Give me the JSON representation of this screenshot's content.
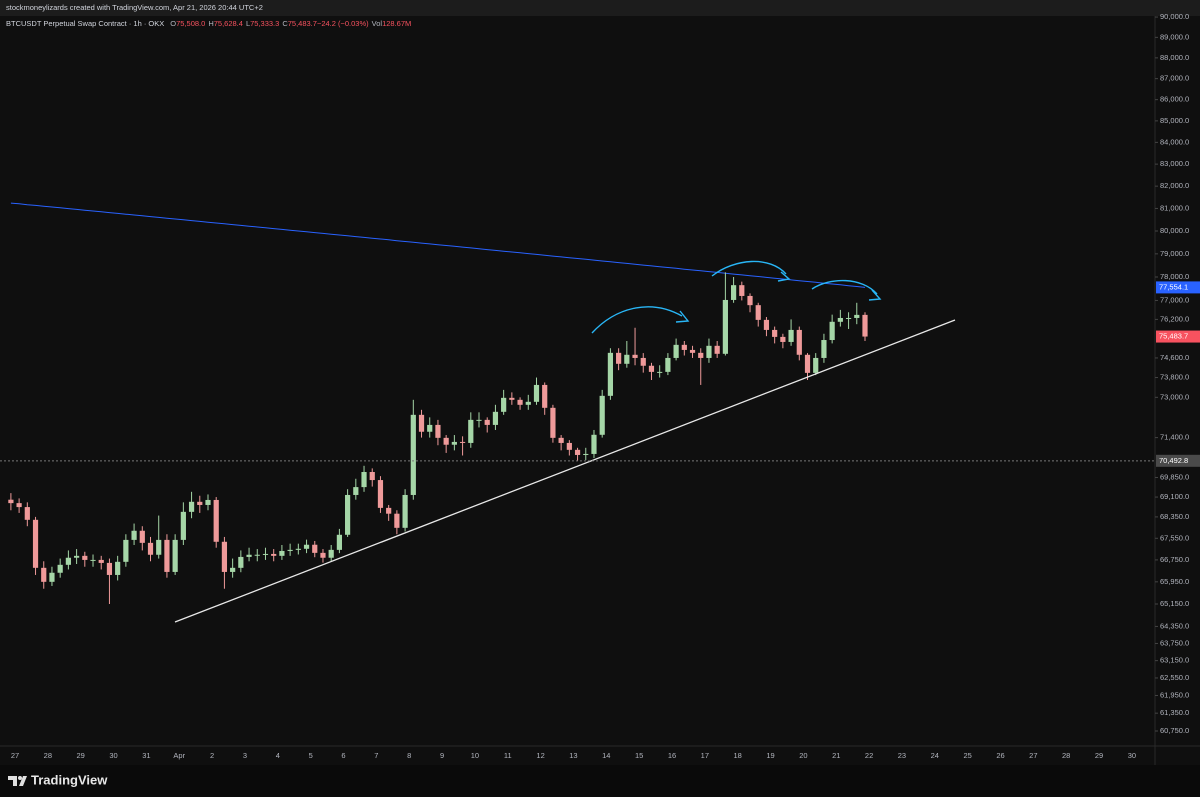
{
  "header": {
    "caption": "stockmoneylizards created with TradingView.com, Apr 21, 2026 20:44 UTC+2"
  },
  "footer": {
    "brand": "TradingView"
  },
  "chart_data": {
    "type": "candlestick",
    "title": "BTCUSDT Perpetual Swap Contract · 1h · OKX",
    "legend": [
      {
        "label": "O",
        "value": "75,508.0"
      },
      {
        "label": "H",
        "value": "75,628.4"
      },
      {
        "label": "L",
        "value": "75,333.3"
      },
      {
        "label": "C",
        "value": "75,483.7"
      },
      {
        "label": "",
        "value": "−24.2 (−0.03%)"
      },
      {
        "label": "Vol",
        "value": "128.67M"
      }
    ],
    "categories": [
      "27",
      "28",
      "29",
      "30",
      "31",
      "Apr",
      "2",
      "3",
      "4",
      "5",
      "6",
      "7",
      "8",
      "9",
      "10",
      "11",
      "12",
      "13",
      "14",
      "15",
      "16",
      "17",
      "18",
      "19",
      "20",
      "21",
      "22",
      "23",
      "24",
      "25",
      "26",
      "27",
      "28",
      "29",
      "30"
    ],
    "log_scale": true,
    "up_color": "#a5d6a7",
    "down_color": "#ef9a9a",
    "ma_color": "#2962ff",
    "ylim": [
      60500,
      90350
    ],
    "yticks": [
      {
        "value": 90000,
        "label": "90,000.0"
      },
      {
        "value": 89000,
        "label": "89,000.0"
      },
      {
        "value": 88000,
        "label": "88,000.0"
      },
      {
        "value": 87000,
        "label": "87,000.0"
      },
      {
        "value": 86000,
        "label": "86,000.0"
      },
      {
        "value": 85000,
        "label": "85,000.0"
      },
      {
        "value": 84000,
        "label": "84,000.0"
      },
      {
        "value": 83000,
        "label": "83,000.0"
      },
      {
        "value": 82000,
        "label": "82,000.0"
      },
      {
        "value": 81000,
        "label": "81,000.0"
      },
      {
        "value": 80000,
        "label": "80,000.0"
      },
      {
        "value": 79000,
        "label": "79,000.0"
      },
      {
        "value": 78000,
        "label": "78,000.0"
      },
      {
        "value": 77000,
        "label": "77,000.0"
      },
      {
        "value": 76200,
        "label": "76,200.0"
      },
      {
        "value": 74600,
        "label": "74,600.0"
      },
      {
        "value": 73800,
        "label": "73,800.0"
      },
      {
        "value": 73000,
        "label": "73,000.0"
      },
      {
        "value": 71400,
        "label": "71,400.0"
      },
      {
        "value": 69850,
        "label": "69,850.0"
      },
      {
        "value": 69100,
        "label": "69,100.0"
      },
      {
        "value": 68350,
        "label": "68,350.0"
      },
      {
        "value": 67550,
        "label": "67,550.0"
      },
      {
        "value": 66750,
        "label": "66,750.0"
      },
      {
        "value": 65950,
        "label": "65,950.0"
      },
      {
        "value": 65150,
        "label": "65,150.0"
      },
      {
        "value": 64350,
        "label": "64,350.0"
      },
      {
        "value": 63750,
        "label": "63,750.0"
      },
      {
        "value": 63150,
        "label": "63,150.0"
      },
      {
        "value": 62550,
        "label": "62,550.0"
      },
      {
        "value": 61950,
        "label": "61,950.0"
      },
      {
        "value": 61350,
        "label": "61,350.0"
      },
      {
        "value": 60750,
        "label": "60,750.0"
      }
    ],
    "price_tags": [
      {
        "value": 77554.1,
        "label": "77,554.1",
        "color": "#2962ff"
      },
      {
        "value": 75483.7,
        "label": "75,483.7",
        "color": "#f7525f"
      },
      {
        "value": 70492.8,
        "label": "70,492.8",
        "color": "#4a4a4a",
        "dashed": true
      }
    ],
    "candles": [
      [
        69000,
        69250,
        68600,
        68870
      ],
      [
        68870,
        69050,
        68500,
        68720
      ],
      [
        68720,
        68900,
        68000,
        68240
      ],
      [
        68240,
        68350,
        66200,
        66460
      ],
      [
        66460,
        66700,
        65700,
        65950
      ],
      [
        65950,
        66500,
        65800,
        66280
      ],
      [
        66280,
        66800,
        66100,
        66570
      ],
      [
        66570,
        67100,
        66400,
        66830
      ],
      [
        66830,
        67150,
        66600,
        66900
      ],
      [
        66900,
        67050,
        66500,
        66750
      ],
      [
        66750,
        66950,
        66500,
        66750
      ],
      [
        66750,
        66900,
        66400,
        66640
      ],
      [
        66640,
        66800,
        65150,
        66200
      ],
      [
        66200,
        66900,
        66000,
        66680
      ],
      [
        66680,
        67700,
        66500,
        67490
      ],
      [
        67490,
        68100,
        67300,
        67830
      ],
      [
        67830,
        68000,
        67100,
        67380
      ],
      [
        67380,
        67600,
        66700,
        66940
      ],
      [
        66940,
        68400,
        66800,
        67490
      ],
      [
        67490,
        67700,
        66100,
        66310
      ],
      [
        66310,
        67700,
        66200,
        67490
      ],
      [
        67490,
        68900,
        67300,
        68540
      ],
      [
        68540,
        69300,
        68300,
        68920
      ],
      [
        68920,
        69150,
        68500,
        68800
      ],
      [
        68800,
        69200,
        68600,
        68990
      ],
      [
        68990,
        69100,
        67200,
        67420
      ],
      [
        67420,
        67600,
        65700,
        66310
      ],
      [
        66310,
        66800,
        66100,
        66460
      ],
      [
        66460,
        67100,
        66300,
        66860
      ],
      [
        66860,
        67200,
        66700,
        66940
      ],
      [
        66940,
        67150,
        66700,
        66940
      ],
      [
        66940,
        67200,
        66750,
        66970
      ],
      [
        66970,
        67150,
        66700,
        66900
      ],
      [
        66900,
        67300,
        66750,
        67080
      ],
      [
        67080,
        67350,
        66900,
        67120
      ],
      [
        67120,
        67350,
        66950,
        67160
      ],
      [
        67160,
        67500,
        67000,
        67310
      ],
      [
        67310,
        67450,
        66850,
        67010
      ],
      [
        67010,
        67150,
        66650,
        66830
      ],
      [
        66830,
        67300,
        66700,
        67120
      ],
      [
        67120,
        67900,
        67000,
        67680
      ],
      [
        67680,
        69400,
        67600,
        69180
      ],
      [
        69180,
        69800,
        69000,
        69480
      ],
      [
        69480,
        70300,
        69300,
        70060
      ],
      [
        70060,
        70200,
        69500,
        69750
      ],
      [
        69750,
        69900,
        68500,
        68690
      ],
      [
        68690,
        68800,
        68200,
        68470
      ],
      [
        68470,
        68600,
        67700,
        67940
      ],
      [
        67940,
        69400,
        67800,
        69180
      ],
      [
        69180,
        72900,
        69000,
        72300
      ],
      [
        72300,
        72500,
        71400,
        71630
      ],
      [
        71630,
        72200,
        71400,
        71900
      ],
      [
        71900,
        72100,
        71100,
        71390
      ],
      [
        71390,
        71500,
        70800,
        71120
      ],
      [
        71120,
        71500,
        70900,
        71230
      ],
      [
        71230,
        71450,
        70700,
        71190
      ],
      [
        71190,
        72400,
        71000,
        72100
      ],
      [
        72100,
        72400,
        71800,
        72100
      ],
      [
        72100,
        72200,
        71600,
        71900
      ],
      [
        71900,
        72700,
        71700,
        72420
      ],
      [
        72420,
        73300,
        72300,
        72980
      ],
      [
        72980,
        73200,
        72700,
        72900
      ],
      [
        72900,
        73000,
        72500,
        72700
      ],
      [
        72700,
        73100,
        72500,
        72820
      ],
      [
        72820,
        73800,
        72700,
        73500
      ],
      [
        73500,
        73600,
        72300,
        72580
      ],
      [
        72580,
        72700,
        71200,
        71390
      ],
      [
        71390,
        71500,
        70900,
        71190
      ],
      [
        71190,
        71300,
        70700,
        70920
      ],
      [
        70920,
        71000,
        70500,
        70720
      ],
      [
        70720,
        71000,
        70520,
        70760
      ],
      [
        70760,
        71700,
        70600,
        71510
      ],
      [
        71510,
        73300,
        71400,
        73060
      ],
      [
        73060,
        75000,
        72900,
        74810
      ],
      [
        74810,
        75000,
        74100,
        74360
      ],
      [
        74360,
        75300,
        74200,
        74730
      ],
      [
        74730,
        75850,
        74300,
        74600
      ],
      [
        74600,
        74800,
        74000,
        74280
      ],
      [
        74280,
        74400,
        73700,
        74030
      ],
      [
        74030,
        74300,
        73800,
        74030
      ],
      [
        74030,
        74800,
        73900,
        74600
      ],
      [
        74600,
        75400,
        74500,
        75140
      ],
      [
        75140,
        75300,
        74700,
        74930
      ],
      [
        74930,
        75100,
        74600,
        74810
      ],
      [
        74810,
        75000,
        73500,
        74600
      ],
      [
        74600,
        75400,
        74400,
        75100
      ],
      [
        75100,
        75300,
        74600,
        74770
      ],
      [
        74770,
        78200,
        74700,
        77020
      ],
      [
        77020,
        78000,
        76900,
        77650
      ],
      [
        77650,
        77800,
        77000,
        77190
      ],
      [
        77190,
        77300,
        76500,
        76800
      ],
      [
        76800,
        76900,
        75900,
        76180
      ],
      [
        76180,
        76300,
        75500,
        75760
      ],
      [
        75760,
        75900,
        75200,
        75470
      ],
      [
        75470,
        75600,
        75000,
        75260
      ],
      [
        75260,
        76200,
        75100,
        75760
      ],
      [
        75760,
        75900,
        74500,
        74730
      ],
      [
        74730,
        74800,
        73700,
        73990
      ],
      [
        73990,
        74800,
        73900,
        74600
      ],
      [
        74600,
        75600,
        74400,
        75340
      ],
      [
        75340,
        76400,
        75200,
        76100
      ],
      [
        76100,
        76600,
        75900,
        76260
      ],
      [
        76260,
        76500,
        75800,
        76260
      ],
      [
        76260,
        76900,
        76000,
        76390
      ],
      [
        76390,
        76500,
        75300,
        75484
      ]
    ],
    "ma_values": [
      81240,
      81205,
      81169,
      81134,
      81098,
      81063,
      81028,
      80992,
      80957,
      80921,
      80886,
      80851,
      80815,
      80780,
      80744,
      80709,
      80674,
      80638,
      80603,
      80567,
      80532,
      80497,
      80461,
      80426,
      80390,
      80355,
      80320,
      80284,
      80249,
      80213,
      80178,
      80143,
      80107,
      80072,
      80036,
      80001,
      79966,
      79930,
      79895,
      79859,
      79824,
      79789,
      79753,
      79718,
      79682,
      79647,
      79612,
      79576,
      79541,
      79505,
      79470,
      79435,
      79399,
      79364,
      79328,
      79293,
      79258,
      79222,
      79187,
      79151,
      79116,
      79081,
      79045,
      79010,
      78974,
      78939,
      78904,
      78868,
      78833,
      78797,
      78762,
      78727,
      78691,
      78656,
      78620,
      78585,
      78550,
      78514,
      78479,
      78443,
      78408,
      78373,
      78337,
      78302,
      78266,
      78231,
      78196,
      78160,
      78125,
      78089,
      78054,
      78019,
      77983,
      77948,
      77912,
      77877,
      77842,
      77806,
      77771,
      77735,
      77700,
      77665,
      77629,
      77594,
      77554.1
    ]
  }
}
